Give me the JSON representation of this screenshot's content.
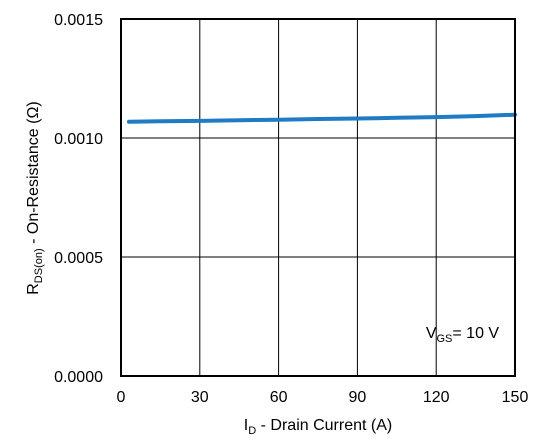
{
  "chart_data": {
    "type": "line",
    "title": "",
    "xlabel": {
      "main": "I",
      "sub": "D",
      "rest": " - Drain Current (A)"
    },
    "ylabel": {
      "main": "R",
      "sub": "DS(on)",
      "rest": " - On-Resistance (Ω)"
    },
    "xlim": [
      0,
      150
    ],
    "ylim": [
      0,
      0.0015
    ],
    "xticks": [
      0,
      30,
      60,
      90,
      120,
      150
    ],
    "xtick_labels": [
      "0",
      "30",
      "60",
      "90",
      "120",
      "150"
    ],
    "yticks": [
      0,
      0.0005,
      0.001,
      0.0015
    ],
    "ytick_labels": [
      "0.0000",
      "0.0005",
      "0.0010",
      "0.0015"
    ],
    "grid": true,
    "series": [
      {
        "color": "#1f7bc4",
        "x": [
          3,
          15,
          30,
          45,
          60,
          75,
          90,
          105,
          120,
          135,
          150
        ],
        "y": [
          0.001068,
          0.00107,
          0.001072,
          0.001075,
          0.001077,
          0.00108,
          0.001082,
          0.001085,
          0.001088,
          0.001092,
          0.001098
        ]
      }
    ],
    "annotation": {
      "main": "V",
      "sub": "GS",
      "rest": "= 10 V",
      "x": 130,
      "y": 0.00016
    }
  }
}
